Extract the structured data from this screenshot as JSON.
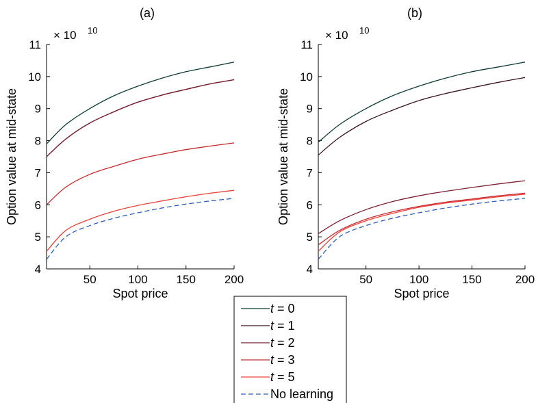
{
  "chart_data": [
    {
      "type": "line",
      "title": "(a)",
      "xlabel": "Spot price",
      "ylabel": "Option value at mid-state",
      "y_multiplier": "× 10",
      "y_exponent": "10",
      "xlim": [
        5,
        200
      ],
      "ylim": [
        4,
        11
      ],
      "xticks": [
        50,
        100,
        150,
        200
      ],
      "yticks": [
        4,
        5,
        6,
        7,
        8,
        9,
        10,
        11
      ],
      "grid": false,
      "series": [
        {
          "name": "t = 0",
          "x": [
            5,
            25,
            50,
            75,
            100,
            125,
            150,
            175,
            200
          ],
          "y": [
            7.9,
            8.5,
            9.0,
            9.4,
            9.7,
            9.95,
            10.15,
            10.3,
            10.45
          ]
        },
        {
          "name": "t = 1",
          "x": [
            5,
            25,
            50,
            75,
            100,
            125,
            150,
            175,
            200
          ],
          "y": [
            7.5,
            8.05,
            8.55,
            8.9,
            9.2,
            9.42,
            9.6,
            9.77,
            9.9
          ]
        },
        {
          "name": "t = 2",
          "x": [
            5,
            25,
            50,
            75,
            100,
            125,
            150,
            175,
            200
          ],
          "y": [
            7.5,
            8.05,
            8.55,
            8.9,
            9.2,
            9.42,
            9.6,
            9.77,
            9.9
          ]
        },
        {
          "name": "t = 3",
          "x": [
            5,
            25,
            50,
            75,
            100,
            125,
            150,
            175,
            200
          ],
          "y": [
            6.0,
            6.55,
            6.95,
            7.2,
            7.42,
            7.58,
            7.72,
            7.83,
            7.93
          ]
        },
        {
          "name": "t = 5",
          "x": [
            5,
            25,
            50,
            75,
            100,
            125,
            150,
            175,
            200
          ],
          "y": [
            4.55,
            5.2,
            5.55,
            5.8,
            5.98,
            6.12,
            6.25,
            6.36,
            6.45
          ]
        },
        {
          "name": "No learning",
          "x": [
            5,
            25,
            50,
            75,
            100,
            125,
            150,
            175,
            200
          ],
          "y": [
            4.3,
            5.0,
            5.35,
            5.58,
            5.75,
            5.9,
            6.02,
            6.12,
            6.2
          ]
        }
      ]
    },
    {
      "type": "line",
      "title": "(b)",
      "xlabel": "Spot price",
      "ylabel": "Option value at mid-state",
      "y_multiplier": "× 10",
      "y_exponent": "10",
      "xlim": [
        5,
        200
      ],
      "ylim": [
        4,
        11
      ],
      "xticks": [
        50,
        100,
        150,
        200
      ],
      "yticks": [
        4,
        5,
        6,
        7,
        8,
        9,
        10,
        11
      ],
      "grid": false,
      "series": [
        {
          "name": "t = 0",
          "x": [
            5,
            25,
            50,
            75,
            100,
            125,
            150,
            175,
            200
          ],
          "y": [
            7.95,
            8.5,
            9.0,
            9.4,
            9.7,
            9.95,
            10.15,
            10.3,
            10.45
          ]
        },
        {
          "name": "t = 1",
          "x": [
            5,
            25,
            50,
            75,
            100,
            125,
            150,
            175,
            200
          ],
          "y": [
            7.55,
            8.1,
            8.6,
            8.95,
            9.25,
            9.47,
            9.65,
            9.82,
            9.97
          ]
        },
        {
          "name": "t = 2",
          "x": [
            5,
            25,
            50,
            75,
            100,
            125,
            150,
            175,
            200
          ],
          "y": [
            5.1,
            5.5,
            5.85,
            6.1,
            6.28,
            6.42,
            6.54,
            6.65,
            6.75
          ]
        },
        {
          "name": "t = 3",
          "x": [
            5,
            25,
            50,
            75,
            100,
            125,
            150,
            175,
            200
          ],
          "y": [
            4.75,
            5.2,
            5.55,
            5.78,
            5.95,
            6.08,
            6.18,
            6.28,
            6.36
          ]
        },
        {
          "name": "t = 5",
          "x": [
            5,
            25,
            50,
            75,
            100,
            125,
            150,
            175,
            200
          ],
          "y": [
            4.55,
            5.15,
            5.5,
            5.73,
            5.92,
            6.05,
            6.15,
            6.25,
            6.33
          ]
        },
        {
          "name": "No learning",
          "x": [
            5,
            25,
            50,
            75,
            100,
            125,
            150,
            175,
            200
          ],
          "y": [
            4.3,
            5.0,
            5.35,
            5.58,
            5.75,
            5.9,
            6.02,
            6.12,
            6.2
          ]
        }
      ]
    }
  ],
  "legend": {
    "placement": "bottom-center",
    "items": [
      {
        "label": "t = 0",
        "color": "#0e3a36",
        "dash": false
      },
      {
        "label": "t = 1",
        "color": "#3a1220",
        "dash": false
      },
      {
        "label": "t = 2",
        "color": "#7a2030",
        "dash": false
      },
      {
        "label": "t = 3",
        "color": "#c8282e",
        "dash": false
      },
      {
        "label": "t = 5",
        "color": "#e8403a",
        "dash": false
      },
      {
        "label": "No learning",
        "color": "#2a5cb8",
        "dash": true
      }
    ]
  }
}
